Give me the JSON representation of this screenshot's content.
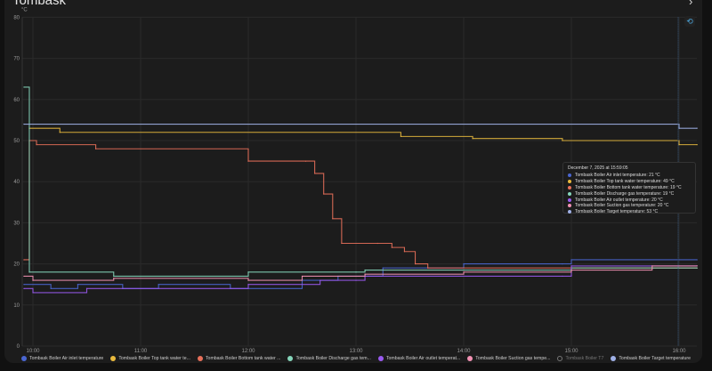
{
  "card": {
    "title": "Tombask"
  },
  "chart_data": {
    "type": "line",
    "step": true,
    "ylabel": "°C",
    "ylim": [
      0,
      80
    ],
    "yticks": [
      "0",
      "10",
      "20",
      "30",
      "40",
      "50",
      "60",
      "70",
      "80"
    ],
    "xticks": [
      "10:00",
      "11:00",
      "12:00",
      "13:00",
      "14:00",
      "15:00",
      "16:00"
    ],
    "grid": true,
    "legend": "bottom",
    "series": [
      {
        "name": "Tombask Boiler Air inlet temperature",
        "legend_label": "Tombask Boiler Air inlet temperature",
        "color": "#4a66d1",
        "visible": true,
        "points": [
          [
            "09:55",
            15
          ],
          [
            "10:10",
            14
          ],
          [
            "10:25",
            15
          ],
          [
            "10:50",
            14
          ],
          [
            "11:10",
            15
          ],
          [
            "11:50",
            14
          ],
          [
            "12:30",
            16
          ],
          [
            "12:50",
            17
          ],
          [
            "13:15",
            19
          ],
          [
            "14:00",
            20
          ],
          [
            "14:55",
            20
          ],
          [
            "15:00",
            21
          ],
          [
            "16:10",
            21
          ]
        ]
      },
      {
        "name": "Tombask Boiler Top tank water temperature",
        "legend_label": "Tombask Boiler Top tank water te...",
        "color": "#e8b93d",
        "visible": true,
        "points": [
          [
            "09:58",
            53
          ],
          [
            "10:15",
            52
          ],
          [
            "13:25",
            51
          ],
          [
            "14:05",
            50.5
          ],
          [
            "14:55",
            50
          ],
          [
            "16:00",
            49
          ],
          [
            "16:10",
            49
          ]
        ]
      },
      {
        "name": "Tombask Boiler Bottom tank water temperature",
        "legend_label": "Tombask Boiler Bottom tank water ...",
        "color": "#e8705a",
        "visible": true,
        "points": [
          [
            "09:55",
            21
          ],
          [
            "09:58",
            50
          ],
          [
            "10:02",
            49
          ],
          [
            "10:35",
            48
          ],
          [
            "12:00",
            45
          ],
          [
            "12:32",
            45
          ],
          [
            "12:37",
            42
          ],
          [
            "12:42",
            37
          ],
          [
            "12:47",
            31
          ],
          [
            "12:52",
            25
          ],
          [
            "13:12",
            25
          ],
          [
            "13:20",
            24
          ],
          [
            "13:27",
            23
          ],
          [
            "13:33",
            20
          ],
          [
            "13:40",
            19
          ],
          [
            "16:10",
            19
          ]
        ]
      },
      {
        "name": "Tombask Boiler Discharge gas temperature",
        "legend_label": "Tombask Boiler Discharge gas tem...",
        "color": "#86d6bb",
        "visible": true,
        "points": [
          [
            "09:55",
            63
          ],
          [
            "09:58",
            18
          ],
          [
            "10:45",
            17
          ],
          [
            "12:00",
            18
          ],
          [
            "13:00",
            18
          ],
          [
            "13:05",
            18.5
          ],
          [
            "14:00",
            18.5
          ],
          [
            "15:00",
            19
          ],
          [
            "16:10",
            19
          ]
        ]
      },
      {
        "name": "Tombask Boiler Air outlet temperature",
        "legend_label": "Tombask Boiler Air outlet temperat...",
        "color": "#9a5af0",
        "visible": true,
        "points": [
          [
            "09:55",
            14
          ],
          [
            "10:00",
            13
          ],
          [
            "10:30",
            14
          ],
          [
            "12:00",
            15
          ],
          [
            "12:40",
            16
          ],
          [
            "13:00",
            16
          ],
          [
            "13:05",
            17
          ],
          [
            "14:55",
            17
          ],
          [
            "15:00",
            19.5
          ],
          [
            "16:10",
            19.5
          ]
        ]
      },
      {
        "name": "Tombask Boiler Suction gas temperature",
        "legend_label": "Tombask Boiler Suction gas tempe...",
        "color": "#f392b4",
        "visible": true,
        "points": [
          [
            "09:55",
            17
          ],
          [
            "10:00",
            16
          ],
          [
            "10:45",
            16.5
          ],
          [
            "12:00",
            16
          ],
          [
            "12:30",
            17
          ],
          [
            "13:05",
            17.5
          ],
          [
            "14:00",
            18
          ],
          [
            "15:00",
            18.5
          ],
          [
            "15:45",
            19.5
          ],
          [
            "16:10",
            19.5
          ]
        ]
      },
      {
        "name": "Tombask Boiler T7",
        "legend_label": "Tombask Boiler T7",
        "color": "#777777",
        "visible": false,
        "points": []
      },
      {
        "name": "Tombask Boiler Target temperature",
        "legend_label": "Tombask Boiler Target temperature",
        "color": "#9fb0e6",
        "visible": true,
        "points": [
          [
            "09:55",
            54
          ],
          [
            "16:00",
            53
          ],
          [
            "16:10",
            53
          ]
        ]
      }
    ]
  },
  "tooltip": {
    "title": "December 7, 2025 at 15:59:05",
    "rows": [
      {
        "text": "Tombask Boiler Air inlet temperature: 21 °C",
        "color": "#4a66d1"
      },
      {
        "text": "Tombask Boiler Top tank water temperature: 49 °C",
        "color": "#e8b93d"
      },
      {
        "text": "Tombask Boiler Bottom tank water temperature: 19 °C",
        "color": "#e8705a"
      },
      {
        "text": "Tombask Boiler Discharge gas temperature: 19 °C",
        "color": "#86d6bb"
      },
      {
        "text": "Tombask Boiler Air outlet temperature: 20 °C",
        "color": "#9a5af0"
      },
      {
        "text": "Tombask Boiler Suction gas temperature: 20 °C",
        "color": "#f392b4"
      },
      {
        "text": "Tombask Boiler Target temperature: 53 °C",
        "color": "#9fb0e6"
      }
    ]
  },
  "icons": {
    "reset_zoom": "reset-zoom-icon",
    "more": "chevron-right-icon"
  }
}
